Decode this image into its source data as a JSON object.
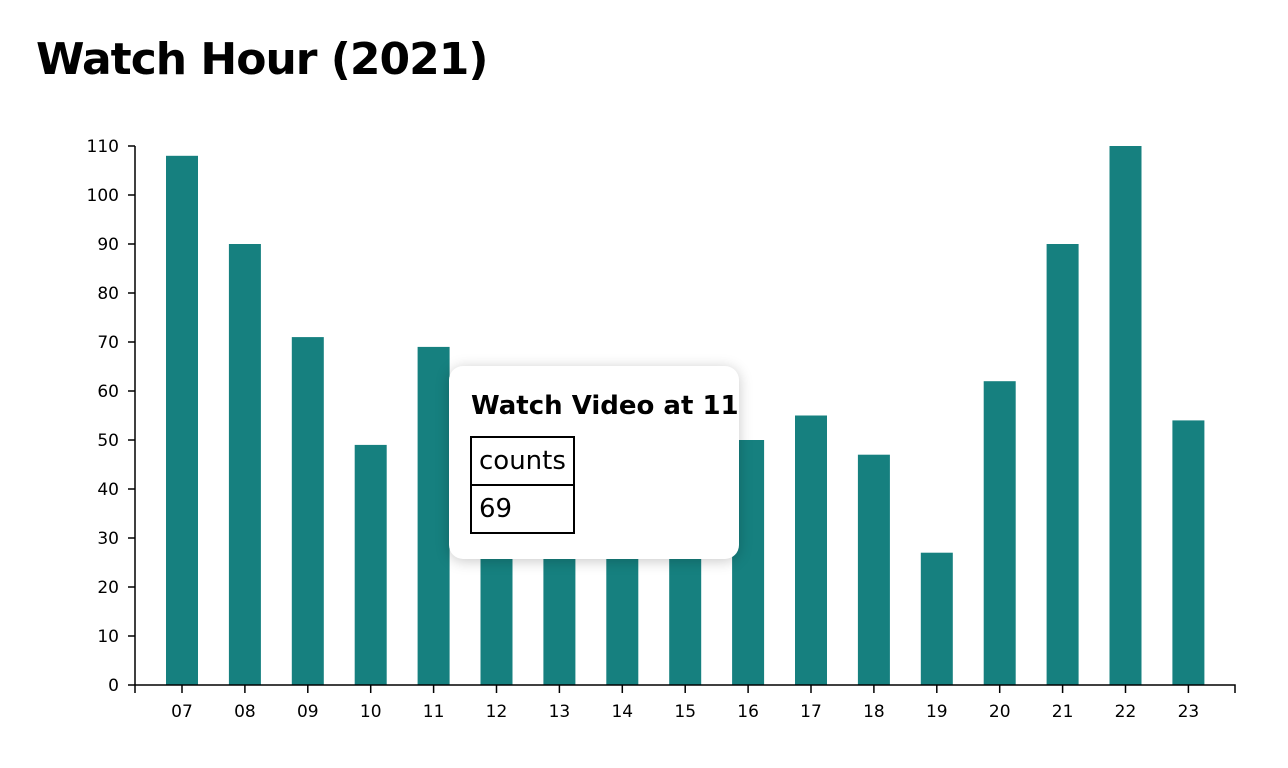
{
  "header": {
    "title": "Watch Hour (2021)"
  },
  "colors": {
    "bar": "#16807f",
    "axis": "#000000",
    "background": "#ffffff"
  },
  "chart_data": {
    "type": "bar",
    "title": "Watch Hour (2021)",
    "xlabel": "",
    "ylabel": "",
    "categories": [
      "07",
      "08",
      "09",
      "10",
      "11",
      "12",
      "13",
      "14",
      "15",
      "16",
      "17",
      "18",
      "19",
      "20",
      "21",
      "22",
      "23"
    ],
    "values": [
      108,
      90,
      71,
      49,
      69,
      30,
      30,
      30,
      30,
      50,
      55,
      47,
      27,
      62,
      90,
      110,
      54
    ],
    "ylim": [
      0,
      110
    ],
    "yticks": [
      0,
      10,
      20,
      30,
      40,
      50,
      60,
      70,
      80,
      90,
      100,
      110
    ],
    "grid": false,
    "legend": "none"
  },
  "tooltip": {
    "title": "Watch Video at 11",
    "label": "counts",
    "value": "69"
  }
}
